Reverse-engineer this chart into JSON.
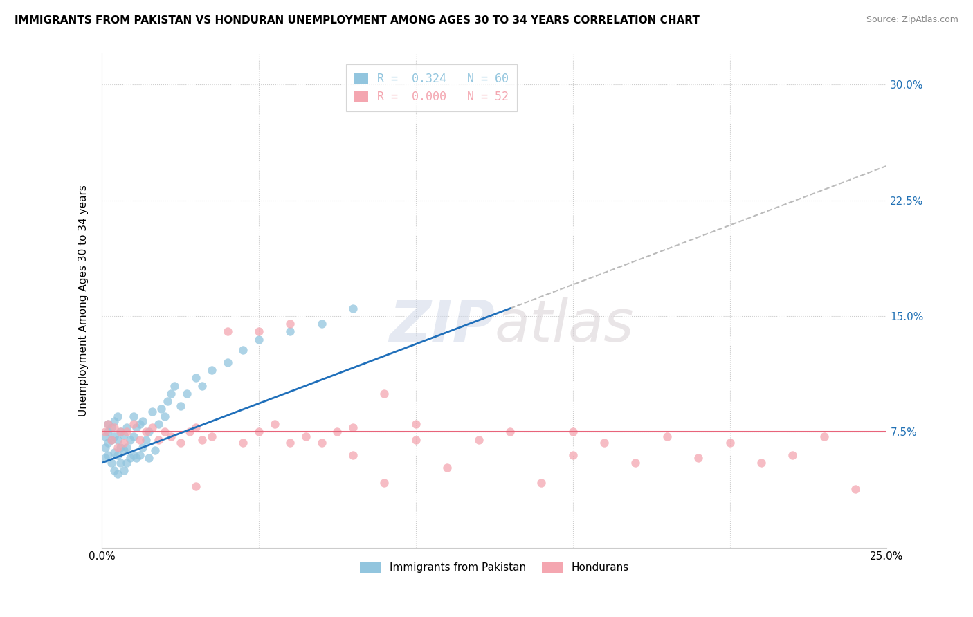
{
  "title": "IMMIGRANTS FROM PAKISTAN VS HONDURAN UNEMPLOYMENT AMONG AGES 30 TO 34 YEARS CORRELATION CHART",
  "source": "Source: ZipAtlas.com",
  "ylabel": "Unemployment Among Ages 30 to 34 years",
  "xlim": [
    0.0,
    0.25
  ],
  "ylim": [
    0.0,
    0.32
  ],
  "pakistan_R": 0.324,
  "pakistan_N": 60,
  "honduran_R": 0.0,
  "honduran_N": 52,
  "pakistan_color": "#92c5de",
  "honduran_color": "#f4a6b0",
  "pakistan_line_color": "#1f6fba",
  "honduran_line_color": "#e8647a",
  "dashed_line_color": "#aaaaaa",
  "grid_color": "#cccccc",
  "pakistan_label": "Immigrants from Pakistan",
  "honduran_label": "Hondurans",
  "pak_x": [
    0.001,
    0.001,
    0.001,
    0.002,
    0.002,
    0.002,
    0.002,
    0.003,
    0.003,
    0.003,
    0.004,
    0.004,
    0.004,
    0.004,
    0.005,
    0.005,
    0.005,
    0.005,
    0.006,
    0.006,
    0.006,
    0.007,
    0.007,
    0.007,
    0.008,
    0.008,
    0.008,
    0.009,
    0.009,
    0.01,
    0.01,
    0.01,
    0.011,
    0.011,
    0.012,
    0.012,
    0.013,
    0.013,
    0.014,
    0.015,
    0.015,
    0.016,
    0.017,
    0.018,
    0.019,
    0.02,
    0.021,
    0.022,
    0.023,
    0.025,
    0.027,
    0.03,
    0.032,
    0.035,
    0.04,
    0.045,
    0.05,
    0.06,
    0.07,
    0.08
  ],
  "pak_y": [
    0.058,
    0.065,
    0.072,
    0.06,
    0.068,
    0.075,
    0.08,
    0.055,
    0.07,
    0.078,
    0.05,
    0.062,
    0.072,
    0.082,
    0.048,
    0.06,
    0.07,
    0.085,
    0.055,
    0.065,
    0.075,
    0.05,
    0.063,
    0.073,
    0.055,
    0.065,
    0.078,
    0.058,
    0.07,
    0.06,
    0.072,
    0.085,
    0.058,
    0.078,
    0.06,
    0.08,
    0.065,
    0.082,
    0.07,
    0.058,
    0.075,
    0.088,
    0.063,
    0.08,
    0.09,
    0.085,
    0.095,
    0.1,
    0.105,
    0.092,
    0.1,
    0.11,
    0.105,
    0.115,
    0.12,
    0.128,
    0.135,
    0.14,
    0.145,
    0.155
  ],
  "hon_x": [
    0.001,
    0.002,
    0.003,
    0.004,
    0.005,
    0.006,
    0.007,
    0.008,
    0.01,
    0.012,
    0.014,
    0.016,
    0.018,
    0.02,
    0.022,
    0.025,
    0.028,
    0.03,
    0.032,
    0.035,
    0.04,
    0.045,
    0.05,
    0.055,
    0.06,
    0.065,
    0.07,
    0.075,
    0.08,
    0.09,
    0.1,
    0.11,
    0.12,
    0.13,
    0.14,
    0.15,
    0.16,
    0.17,
    0.18,
    0.19,
    0.2,
    0.21,
    0.22,
    0.23,
    0.24,
    0.05,
    0.08,
    0.1,
    0.03,
    0.15,
    0.06,
    0.09
  ],
  "hon_y": [
    0.075,
    0.08,
    0.07,
    0.078,
    0.065,
    0.075,
    0.068,
    0.075,
    0.08,
    0.07,
    0.075,
    0.078,
    0.07,
    0.075,
    0.072,
    0.068,
    0.075,
    0.078,
    0.07,
    0.072,
    0.14,
    0.068,
    0.14,
    0.08,
    0.145,
    0.072,
    0.068,
    0.075,
    0.078,
    0.1,
    0.07,
    0.052,
    0.07,
    0.075,
    0.042,
    0.06,
    0.068,
    0.055,
    0.072,
    0.058,
    0.068,
    0.055,
    0.06,
    0.072,
    0.038,
    0.075,
    0.06,
    0.08,
    0.04,
    0.075,
    0.068,
    0.042
  ]
}
